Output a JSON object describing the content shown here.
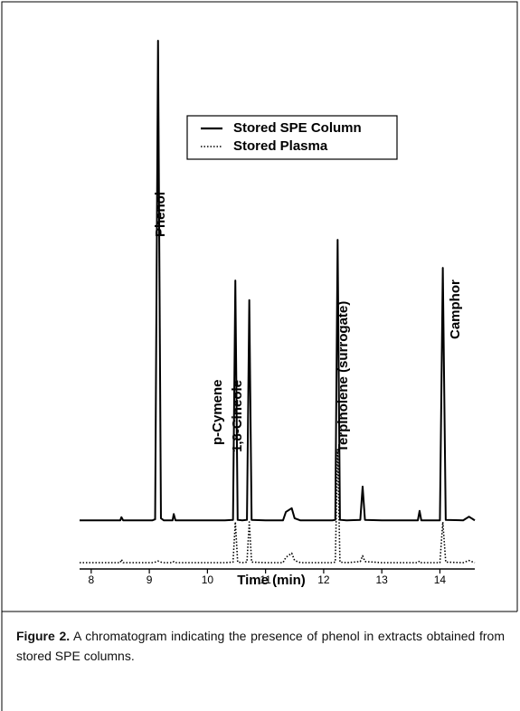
{
  "chart_data": {
    "type": "line",
    "x_label": "Time (min)",
    "xlim": [
      7.8,
      14.6
    ],
    "xticks": [
      8,
      9,
      10,
      11,
      12,
      13,
      14
    ],
    "ylim": [
      0,
      100
    ],
    "legend": "top-center",
    "x": [
      7.8,
      8.5,
      8.52,
      8.55,
      9.05,
      9.1,
      9.15,
      9.2,
      9.25,
      9.4,
      9.42,
      9.45,
      10.3,
      10.44,
      10.48,
      10.52,
      10.6,
      10.68,
      10.72,
      10.76,
      11.0,
      11.3,
      11.35,
      11.45,
      11.5,
      11.6,
      12.15,
      12.2,
      12.24,
      12.28,
      12.4,
      12.63,
      12.67,
      12.71,
      13.0,
      13.62,
      13.65,
      13.68,
      14.0,
      14.05,
      14.1,
      14.4,
      14.5,
      14.6
    ],
    "series": [
      {
        "name": "Stored SPE Column",
        "color": "#000000",
        "style": "solid",
        "values": [
          9.2,
          9.2,
          9.8,
          9.2,
          9.2,
          9.4,
          100,
          9.6,
          9.2,
          9.2,
          10.4,
          9.2,
          9.2,
          9.3,
          54.6,
          9.3,
          9.2,
          9.3,
          50.9,
          9.3,
          9.2,
          9.2,
          10.8,
          11.5,
          9.6,
          9.2,
          9.2,
          9.3,
          62.3,
          9.3,
          9.2,
          9.3,
          15.6,
          9.3,
          9.2,
          9.2,
          11.0,
          9.2,
          9.2,
          57.0,
          9.3,
          9.2,
          9.9,
          9.2
        ]
      },
      {
        "name": "Stored Plasma",
        "color": "#000000",
        "style": "dotted",
        "values": [
          1.2,
          1.2,
          1.8,
          1.2,
          1.2,
          1.3,
          1.5,
          1.3,
          1.2,
          1.2,
          1.4,
          1.2,
          1.2,
          1.3,
          8.9,
          1.3,
          1.2,
          1.3,
          8.9,
          1.3,
          1.2,
          1.2,
          2.2,
          3.0,
          1.6,
          1.2,
          1.2,
          1.3,
          22.6,
          1.3,
          1.2,
          1.4,
          2.5,
          1.4,
          1.2,
          1.2,
          1.5,
          1.2,
          1.2,
          8.9,
          1.3,
          1.2,
          1.6,
          1.2
        ]
      }
    ],
    "annotations": [
      "Phenol",
      "p-Cymene",
      "1,8-Cineole",
      "Terpinolene (surrogate)",
      "Camphor"
    ]
  },
  "caption": {
    "label": "Figure 2.",
    "text": "A chromatogram indicating the presence of phenol in extracts obtained from stored SPE columns."
  }
}
